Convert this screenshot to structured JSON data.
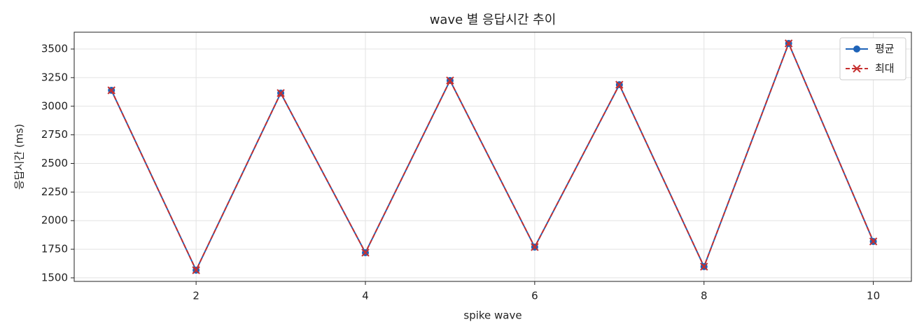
{
  "chart_data": {
    "type": "line",
    "title": "wave 별 응답시간 추이",
    "x_label": "spike wave",
    "y_label": "응답시간 (ms)",
    "x": [
      1,
      2,
      3,
      4,
      5,
      6,
      7,
      8,
      9,
      10
    ],
    "series": [
      {
        "name": "평균",
        "color": "#1f63b8",
        "line_style": "solid",
        "marker": "circle",
        "values": [
          3139,
          1567,
          3115,
          1720,
          3225,
          1769,
          3188,
          1598,
          3549,
          1818
        ]
      },
      {
        "name": "최대",
        "color": "#c62f2f",
        "line_style": "dashed",
        "marker": "x",
        "values": [
          3139,
          1567,
          3115,
          1720,
          3225,
          1769,
          3188,
          1598,
          3549,
          1818
        ]
      }
    ],
    "xlim": [
      0.56,
      10.45
    ],
    "ylim": [
      1469,
      3647
    ],
    "xticks": [
      2,
      4,
      6,
      8,
      10
    ],
    "yticks": [
      1500,
      1750,
      2000,
      2250,
      2500,
      2750,
      3000,
      3250,
      3500
    ],
    "grid": true,
    "legend": "upper right"
  }
}
